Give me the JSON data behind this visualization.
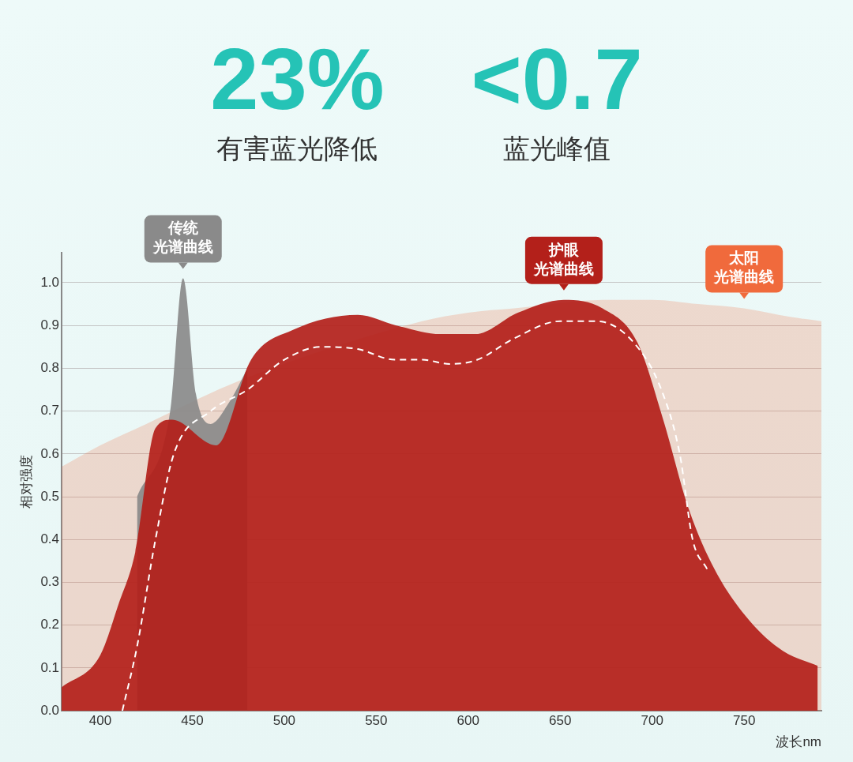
{
  "chart_data": {
    "type": "area",
    "annotations": [
      "23%",
      "有害蓝光降低",
      "<0.7",
      "蓝光峰值"
    ],
    "xlabel": "波长nm",
    "ylabel": "相对强度",
    "xlim": [
      379,
      792
    ],
    "ylim": [
      0,
      1.07
    ],
    "xticks": [
      400,
      450,
      500,
      550,
      600,
      650,
      700,
      750
    ],
    "yticks": [
      {
        "value": 0,
        "label": "0.0"
      },
      {
        "value": 0.1,
        "label": "0.1"
      },
      {
        "value": 0.2,
        "label": "0.2"
      },
      {
        "value": 0.3,
        "label": "0.3"
      },
      {
        "value": 0.4,
        "label": "0.4"
      },
      {
        "value": 0.5,
        "label": "0.5"
      },
      {
        "value": 0.6,
        "label": "0.6"
      },
      {
        "value": 0.7,
        "label": "0.7"
      },
      {
        "value": 0.8,
        "label": "0.8"
      },
      {
        "value": 0.9,
        "label": "0.9"
      },
      {
        "value": 1.0,
        "label": "1.0"
      }
    ],
    "grid": "y",
    "legend": false,
    "marker": "none",
    "series": [
      {
        "name": "太阳光谱曲线",
        "color": "#f06a3c",
        "x": [
          379,
          400,
          425,
          450,
          475,
          500,
          525,
          550,
          575,
          600,
          625,
          650,
          675,
          700,
          725,
          750,
          775,
          792
        ],
        "values": [
          0.57,
          0.62,
          0.67,
          null,
          0.77,
          null,
          null,
          null,
          0.91,
          0.93,
          0.94,
          null,
          0.96,
          0.96,
          0.95,
          0.94,
          0.92,
          0.91
        ]
      },
      {
        "name": "传统光谱曲线",
        "color": "#8a8a8a",
        "x": [
          420,
          430,
          438,
          445,
          452,
          460,
          470,
          480
        ],
        "values": [
          0.5,
          null,
          0.7,
          1.01,
          0.74,
          0.67,
          0.72,
          0.8
        ]
      },
      {
        "name": "护眼光谱曲线",
        "color": "#b3201a",
        "x": [
          379,
          400,
          410,
          419,
          430,
          439,
          463,
          482,
          505,
          540,
          561,
          585,
          604,
          627,
          652,
          673,
          692,
          706,
          720,
          734,
          753,
          771,
          790
        ],
        "values": [
          0.055,
          0.13,
          0.25,
          0.37,
          0.66,
          0.68,
          0.62,
          0.82,
          0.89,
          0.925,
          0.9,
          0.88,
          0.88,
          0.93,
          0.96,
          0.94,
          0.86,
          0.68,
          0.47,
          0.33,
          0.21,
          0.14,
          0.105
        ]
      },
      {
        "type": "line",
        "color": "#ffffff",
        "line_style": "dashed",
        "x": [
          412,
          420,
          430,
          440,
          460,
          480,
          500,
          520,
          540,
          560,
          575,
          590,
          605,
          625,
          650,
          670,
          690,
          705,
          715,
          722,
          730
        ],
        "values": [
          0,
          0.15,
          0.4,
          0.6,
          0.7,
          0.75,
          0.82,
          0.85,
          0.845,
          0.82,
          0.82,
          0.81,
          0.82,
          0.87,
          0.91,
          0.91,
          0.86,
          0.75,
          0.6,
          0.4,
          0.33
        ]
      }
    ]
  }
}
